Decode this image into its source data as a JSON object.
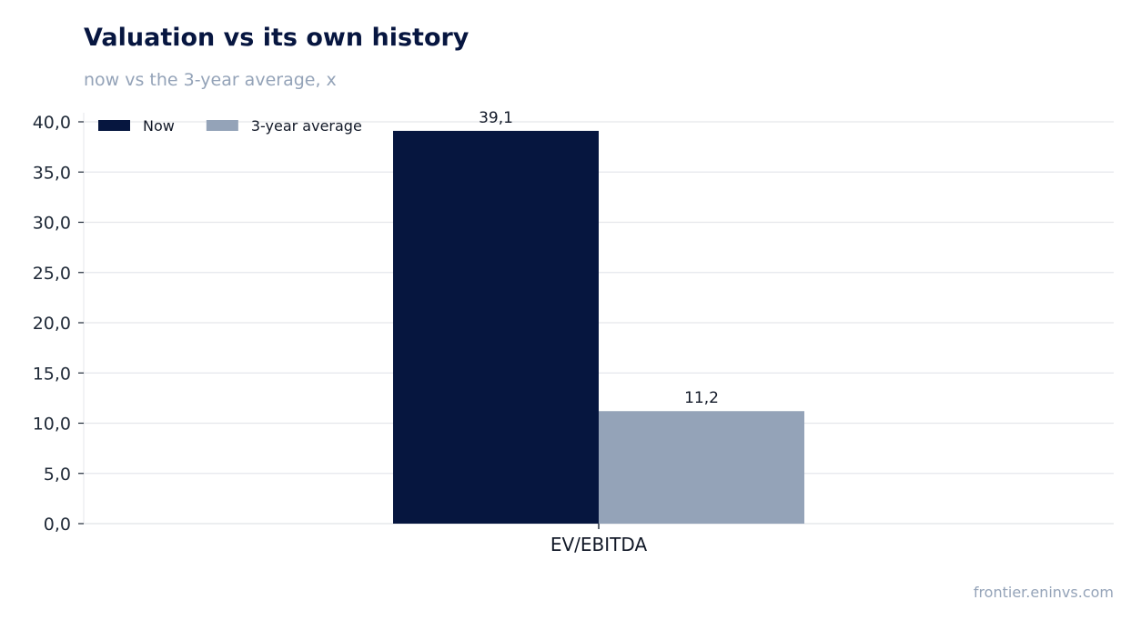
{
  "header": {
    "title": "Valuation vs its own history",
    "subtitle": "now vs the 3-year average, x"
  },
  "footer": {
    "source": "frontier.eninvs.com"
  },
  "colors": {
    "now": "#06163f",
    "avg": "#94a3b8",
    "grid": "#e5e7eb",
    "axis": "#1f2937"
  },
  "chart_data": {
    "type": "bar",
    "categories": [
      "EV/EBITDA"
    ],
    "series": [
      {
        "name": "Now",
        "values": [
          39.1
        ],
        "labels": [
          "39,1"
        ]
      },
      {
        "name": "3-year average",
        "values": [
          11.2
        ],
        "labels": [
          "11,2"
        ]
      }
    ],
    "title": "Valuation vs its own history",
    "subtitle": "now vs the 3-year average, x",
    "ylim": [
      0,
      40
    ],
    "yticks": [
      0,
      5,
      10,
      15,
      20,
      25,
      30,
      35,
      40
    ],
    "ytick_labels": [
      "0,0",
      "5,0",
      "10,0",
      "15,0",
      "20,0",
      "25,0",
      "30,0",
      "35,0",
      "40,0"
    ],
    "grid": true,
    "legend": "top-left"
  }
}
